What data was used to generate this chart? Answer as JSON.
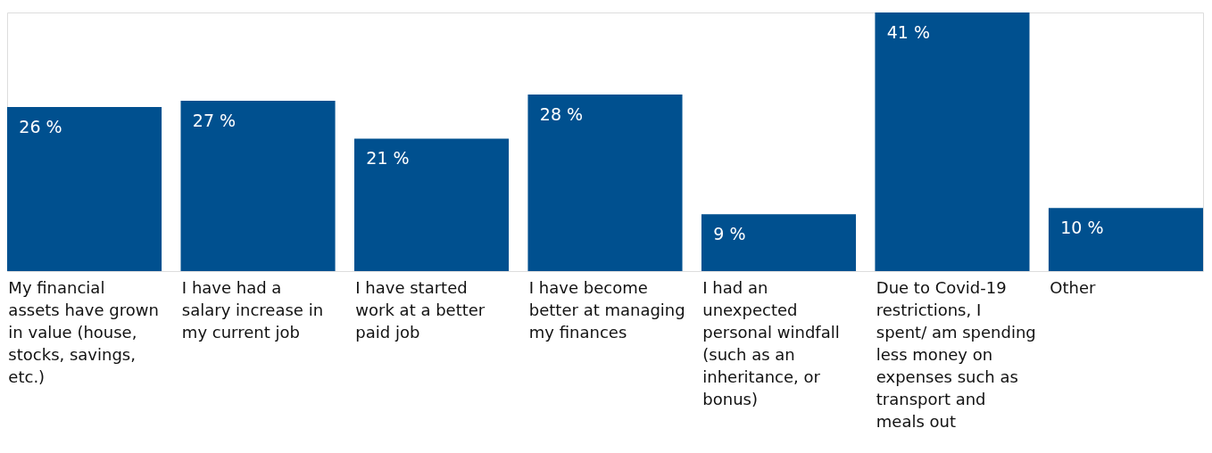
{
  "chart_data": {
    "type": "bar",
    "categories": [
      "My financial assets have grown in value (house, stocks, savings, etc.)",
      "I have had a salary increase in my current job",
      "I have started work at a better paid job",
      "I have become better at managing my finances",
      "I had an unexpected personal windfall (such as an inheritance, or bonus)",
      "Due to Covid-19 restrictions, I spent/ am spending less money on expenses such as transport and meals out",
      "Other"
    ],
    "values": [
      26,
      27,
      21,
      28,
      9,
      41,
      10
    ],
    "value_labels": [
      "26 %",
      "27 %",
      "21 %",
      "28 %",
      "9 %",
      "41 %",
      "10 %"
    ],
    "color": "#00508f"
  }
}
